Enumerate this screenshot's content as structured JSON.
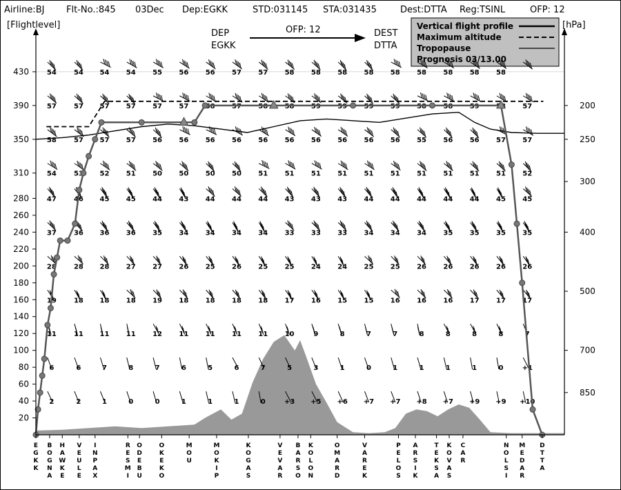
{
  "header": {
    "airline": "Airline:BJ",
    "flight": "Flt-No.:845",
    "date": "03Dec",
    "dep": "Dep:EGKK",
    "std": "STD:031145",
    "sta": "STA:031435",
    "dest": "Dest:DTTA",
    "reg": "Reg:TSINL",
    "ofp": "OFP: 12"
  },
  "route_banner": {
    "dep_label": "DEP",
    "dep_code": "EGKK",
    "ofp": "OFP: 12",
    "dest_label": "DEST",
    "dest_code": "DTTA"
  },
  "legend": {
    "items": [
      {
        "label": "Vertical flight profile",
        "style": "thick-solid"
      },
      {
        "label": "Maximum altitude",
        "style": "dashed"
      },
      {
        "label": "Tropopause",
        "style": "thin-solid"
      },
      {
        "label": "Prognosis  03/13.00",
        "style": "none"
      }
    ]
  },
  "chart_data": {
    "type": "line",
    "title": "",
    "ylabel_left": "[Flightlevel]",
    "ylabel_right": "[hPa]",
    "fl_ticks": [
      20,
      40,
      60,
      80,
      100,
      120,
      140,
      160,
      180,
      200,
      220,
      240,
      260,
      280,
      310,
      350,
      390,
      430
    ],
    "hpa_ticks": [
      "200",
      "250",
      "300",
      "400",
      "500",
      "700",
      "850"
    ],
    "hpa_fl": [
      390,
      350,
      300,
      240,
      170,
      100,
      50
    ],
    "waypoints": [
      "EGKK",
      "BOGNA",
      "HAWKE",
      "VEULE",
      "INPAX",
      "RESMI",
      "ODEBU",
      "OKEKO",
      "MOU",
      "MOKIP",
      "KOGAS",
      "VEVAR",
      "BARSO",
      "KOLON",
      "OMARD",
      "VAREK",
      "PELOS",
      "ARSIK",
      "TEKSA",
      "KOVAS",
      "CAR",
      "NOLSI",
      "MEDAR",
      "DTTA"
    ],
    "waypoint_pos": [
      0,
      0.026,
      0.05,
      0.082,
      0.112,
      0.174,
      0.196,
      0.238,
      0.29,
      0.342,
      0.402,
      0.462,
      0.496,
      0.52,
      0.57,
      0.622,
      0.686,
      0.718,
      0.758,
      0.782,
      0.808,
      0.89,
      0.92,
      0.958
    ],
    "wind_columns": [
      0.022,
      0.073,
      0.122,
      0.172,
      0.222,
      0.272,
      0.322,
      0.372,
      0.422,
      0.472,
      0.522,
      0.572,
      0.622,
      0.672,
      0.722,
      0.772,
      0.822,
      0.872,
      0.922
    ],
    "wind_levels": [
      430,
      390,
      350,
      310,
      280,
      240,
      200,
      160,
      120,
      80,
      40
    ],
    "wind_temps": {
      "430": [
        "54",
        "54",
        "54",
        "54",
        "55",
        "56",
        "56",
        "57",
        "57",
        "58",
        "58",
        "58",
        "58",
        "58",
        "58",
        "58",
        "58",
        "58",
        ""
      ],
      "390": [
        "57",
        "57",
        "57",
        "57",
        "57",
        "57",
        "58",
        "57",
        "58",
        "58",
        "59",
        "59",
        "59",
        "59",
        "58",
        "58",
        "59",
        "58",
        "57"
      ],
      "350": [
        "58",
        "57",
        "57",
        "57",
        "56",
        "56",
        "56",
        "56",
        "56",
        "56",
        "56",
        "56",
        "56",
        "56",
        "55",
        "56",
        "56",
        "57",
        "57"
      ],
      "310": [
        "54",
        "53",
        "52",
        "51",
        "50",
        "50",
        "50",
        "50",
        "51",
        "51",
        "51",
        "51",
        "51",
        "51",
        "51",
        "51",
        "51",
        "51",
        "52"
      ],
      "280": [
        "47",
        "46",
        "45",
        "45",
        "44",
        "43",
        "44",
        "44",
        "44",
        "43",
        "43",
        "43",
        "44",
        "44",
        "44",
        "44",
        "44",
        "45",
        "45"
      ],
      "240": [
        "37",
        "36",
        "36",
        "36",
        "35",
        "34",
        "34",
        "34",
        "34",
        "33",
        "33",
        "33",
        "34",
        "34",
        "34",
        "35",
        "35",
        "35",
        "35"
      ],
      "200": [
        "28",
        "28",
        "28",
        "27",
        "27",
        "26",
        "25",
        "26",
        "25",
        "25",
        "24",
        "24",
        "25",
        "25",
        "26",
        "26",
        "26",
        "26",
        "26"
      ],
      "160": [
        "19",
        "18",
        "18",
        "18",
        "19",
        "18",
        "18",
        "18",
        "18",
        "17",
        "16",
        "15",
        "15",
        "16",
        "16",
        "16",
        "17",
        "17",
        "17"
      ],
      "120": [
        "11",
        "11",
        "11",
        "11",
        "12",
        "11",
        "11",
        "11",
        "11",
        "10",
        "9",
        "8",
        "7",
        "7",
        "8",
        "8",
        "8",
        "8",
        "7"
      ],
      "80": [
        "6",
        "6",
        "7",
        "8",
        "7",
        "6",
        "5",
        "6",
        "7",
        "5",
        "3",
        "1",
        "0",
        "1",
        "1",
        "1",
        "1",
        "0",
        "+1"
      ],
      "40": [
        "2",
        "2",
        "1",
        "0",
        "0",
        "1",
        "1",
        "1",
        "0",
        "+3",
        "+5",
        "+6",
        "+7",
        "+7",
        "+8",
        "+7",
        "+9",
        "+9",
        "+10"
      ]
    },
    "flight_profile": {
      "x": [
        0,
        0.004,
        0.008,
        0.012,
        0.016,
        0.022,
        0.028,
        0.034,
        0.04,
        0.046,
        0.06,
        0.074,
        0.082,
        0.09,
        0.1,
        0.112,
        0.124,
        0.2,
        0.28,
        0.3,
        0.32,
        0.45,
        0.6,
        0.75,
        0.88,
        0.9,
        0.91,
        0.92,
        0.94,
        0.958
      ],
      "fl": [
        0,
        30,
        50,
        70,
        90,
        130,
        150,
        190,
        210,
        230,
        230,
        250,
        290,
        310,
        330,
        350,
        370,
        370,
        370,
        370,
        390,
        390,
        390,
        390,
        390,
        320,
        250,
        180,
        30,
        0
      ]
    },
    "max_altitude": {
      "x": [
        0.02,
        0.04,
        0.1,
        0.13,
        0.96
      ],
      "fl": [
        365,
        365,
        365,
        395,
        395
      ]
    },
    "tropopause": {
      "x": [
        0,
        0.05,
        0.1,
        0.15,
        0.2,
        0.25,
        0.3,
        0.35,
        0.4,
        0.45,
        0.5,
        0.55,
        0.6,
        0.65,
        0.7,
        0.75,
        0.8,
        0.83,
        0.86,
        0.9,
        0.95,
        1.0
      ],
      "fl": [
        350,
        352,
        355,
        360,
        365,
        368,
        366,
        362,
        358,
        365,
        372,
        374,
        372,
        370,
        375,
        380,
        382,
        370,
        362,
        358,
        357,
        357
      ]
    },
    "terrain": {
      "x": [
        0,
        0.05,
        0.1,
        0.15,
        0.2,
        0.25,
        0.3,
        0.32,
        0.35,
        0.37,
        0.39,
        0.41,
        0.43,
        0.45,
        0.47,
        0.49,
        0.5,
        0.51,
        0.53,
        0.55,
        0.57,
        0.6,
        0.63,
        0.66,
        0.68,
        0.7,
        0.72,
        0.74,
        0.76,
        0.78,
        0.8,
        0.82,
        0.84,
        0.86,
        0.9,
        0.95,
        1.0
      ],
      "fl": [
        5,
        6,
        8,
        10,
        8,
        10,
        12,
        20,
        30,
        18,
        25,
        62,
        90,
        110,
        118,
        100,
        112,
        95,
        60,
        38,
        15,
        3,
        2,
        3,
        8,
        25,
        30,
        28,
        22,
        30,
        36,
        32,
        18,
        3,
        2,
        2,
        2
      ]
    }
  }
}
